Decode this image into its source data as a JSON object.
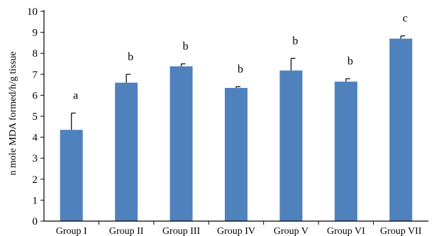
{
  "chart_data": {
    "type": "bar",
    "title": "",
    "xlabel": "",
    "ylabel": "n mole MDA formed/h/g  tissue",
    "ylim": [
      0,
      10
    ],
    "yticks": [
      0,
      1,
      2,
      3,
      4,
      5,
      6,
      7,
      8,
      9,
      10
    ],
    "grid": false,
    "categories": [
      "Group I",
      "Group II",
      "Group III",
      "Group IV",
      "Group V",
      "Group VI",
      "Group VII"
    ],
    "values": [
      4.35,
      6.6,
      7.38,
      6.35,
      7.18,
      6.65,
      8.7
    ],
    "errors": [
      0.8,
      0.4,
      0.12,
      0.06,
      0.58,
      0.14,
      0.13
    ],
    "significance_labels": [
      "a",
      "b",
      "b",
      "b",
      "b",
      "b",
      "c"
    ],
    "colors": {
      "bar": "#4f81bd",
      "axis": "#000000"
    }
  }
}
